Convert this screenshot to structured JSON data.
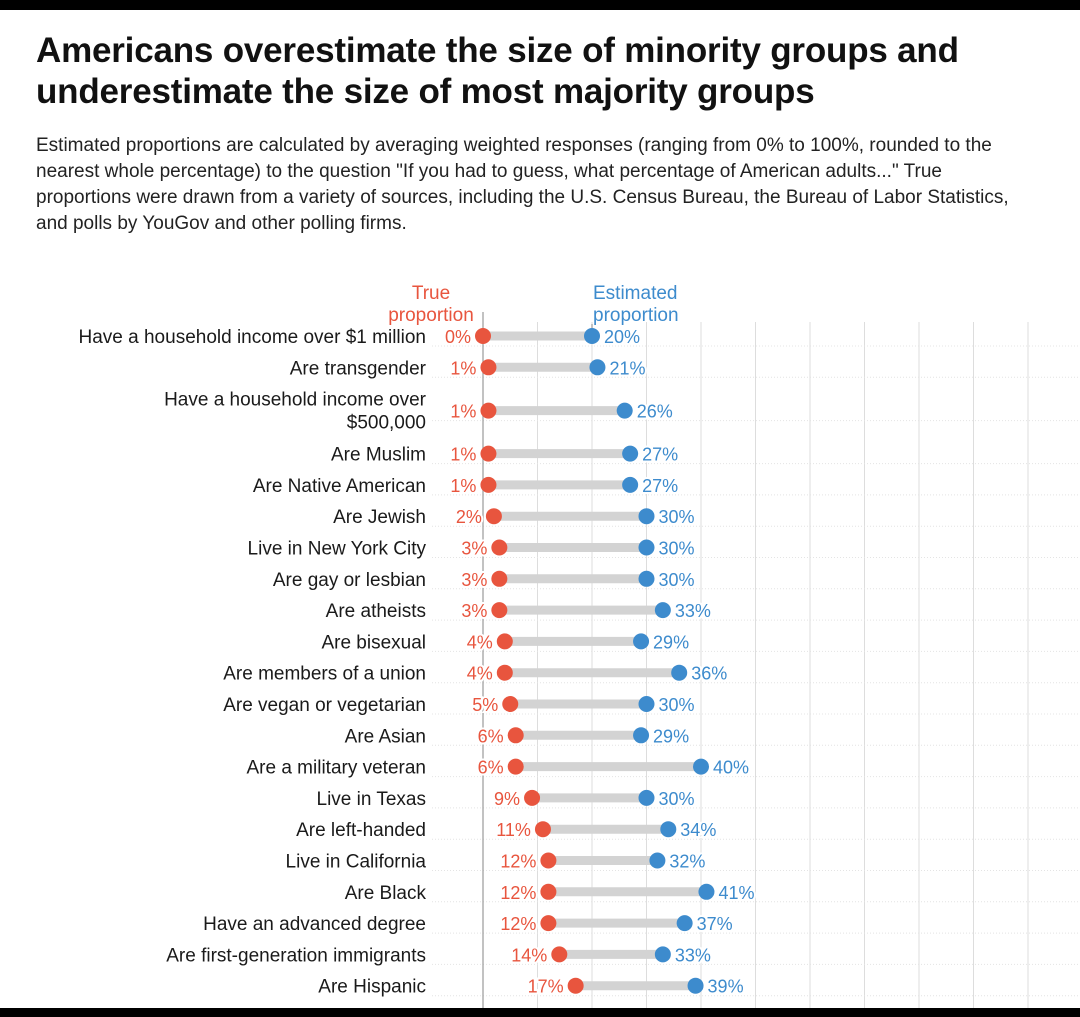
{
  "title": "Americans overestimate the size of minority groups and underestimate the size of most majority groups",
  "subtitle": "Estimated proportions are calculated by averaging weighted responses (ranging from 0% to 100%, rounded to the nearest whole percentage) to the question \"If you had to guess, what percentage of American adults...\" True proportions were drawn from a variety of sources, including the U.S. Census Bureau, the Bureau of Labor Statistics, and polls by YouGov and other polling firms.",
  "colors": {
    "true": "#e8553e",
    "estimated": "#3d8bcd",
    "connector": "#d3d3d3",
    "grid": "#dddddd"
  },
  "chart_data": {
    "type": "dumbbell",
    "xlim": [
      0,
      100
    ],
    "grid": true,
    "series": [
      {
        "name": "True proportion",
        "label_lines": [
          "True",
          "proportion"
        ],
        "color": "#e8553e"
      },
      {
        "name": "Estimated proportion",
        "label_lines": [
          "Estimated",
          "proportion"
        ],
        "color": "#3d8bcd"
      }
    ],
    "rows": [
      {
        "label": [
          "Have a household income over $1 million"
        ],
        "true": 0,
        "estimated": 20
      },
      {
        "label": [
          "Are transgender"
        ],
        "true": 1,
        "estimated": 21
      },
      {
        "label": [
          "Have a household income over",
          "$500,000"
        ],
        "true": 1,
        "estimated": 26
      },
      {
        "label": [
          "Are Muslim"
        ],
        "true": 1,
        "estimated": 27
      },
      {
        "label": [
          "Are Native American"
        ],
        "true": 1,
        "estimated": 27
      },
      {
        "label": [
          "Are Jewish"
        ],
        "true": 2,
        "estimated": 30
      },
      {
        "label": [
          "Live in New York City"
        ],
        "true": 3,
        "estimated": 30
      },
      {
        "label": [
          "Are gay or lesbian"
        ],
        "true": 3,
        "estimated": 30
      },
      {
        "label": [
          "Are atheists"
        ],
        "true": 3,
        "estimated": 33
      },
      {
        "label": [
          "Are bisexual"
        ],
        "true": 4,
        "estimated": 29
      },
      {
        "label": [
          "Are members of a union"
        ],
        "true": 4,
        "estimated": 36
      },
      {
        "label": [
          "Are vegan or vegetarian"
        ],
        "true": 5,
        "estimated": 30
      },
      {
        "label": [
          "Are Asian"
        ],
        "true": 6,
        "estimated": 29
      },
      {
        "label": [
          "Are a military veteran"
        ],
        "true": 6,
        "estimated": 40
      },
      {
        "label": [
          "Live in Texas"
        ],
        "true": 9,
        "estimated": 30
      },
      {
        "label": [
          "Are left-handed"
        ],
        "true": 11,
        "estimated": 34
      },
      {
        "label": [
          "Live in California"
        ],
        "true": 12,
        "estimated": 32
      },
      {
        "label": [
          "Are Black"
        ],
        "true": 12,
        "estimated": 41
      },
      {
        "label": [
          "Have an advanced degree"
        ],
        "true": 12,
        "estimated": 37
      },
      {
        "label": [
          "Are first-generation immigrants"
        ],
        "true": 14,
        "estimated": 33
      },
      {
        "label": [
          "Are Hispanic"
        ],
        "true": 17,
        "estimated": 39
      }
    ]
  }
}
